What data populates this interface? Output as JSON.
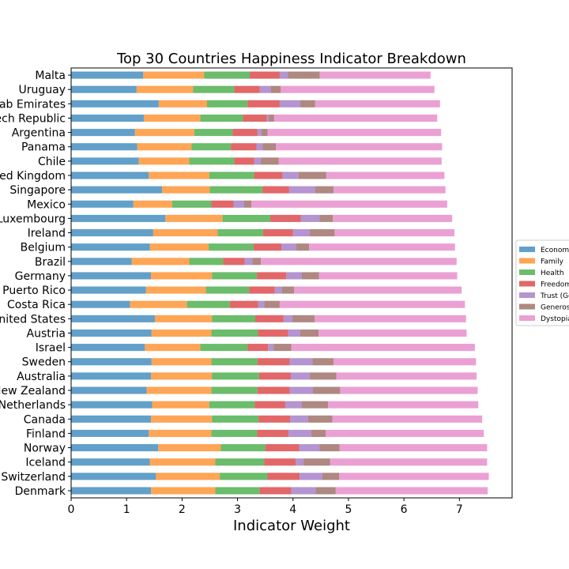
{
  "chart_data": {
    "type": "bar",
    "orientation": "horizontal",
    "stacked": true,
    "title": "Top 30 Countries Happiness Indicator Breakdown",
    "xlabel": "Indicator Weight",
    "ylabel": "",
    "xlim": [
      0,
      7.95
    ],
    "xticks": [
      "0",
      "1",
      "2",
      "3",
      "4",
      "5",
      "6",
      "7"
    ],
    "grid": false,
    "legend_position": "right",
    "categories": [
      "Denmark",
      "Switzerland",
      "Iceland",
      "Norway",
      "Finland",
      "Canada",
      "Netherlands",
      "New Zealand",
      "Australia",
      "Sweden",
      "Israel",
      "Austria",
      "United States",
      "Costa Rica",
      "Puerto Rico",
      "Germany",
      "Brazil",
      "Belgium",
      "Ireland",
      "Luxembourg",
      "Mexico",
      "Singapore",
      "United Kingdom",
      "Chile",
      "Panama",
      "Argentina",
      "Czech Republic",
      "United Arab Emirates",
      "Uruguay",
      "Malta"
    ],
    "series": [
      {
        "name": "Economy",
        "color": "#1f77b4",
        "values": [
          1.44,
          1.53,
          1.42,
          1.57,
          1.4,
          1.44,
          1.46,
          1.36,
          1.44,
          1.45,
          1.33,
          1.45,
          1.51,
          1.06,
          1.35,
          1.44,
          1.09,
          1.42,
          1.48,
          1.7,
          1.12,
          1.64,
          1.4,
          1.22,
          1.19,
          1.15,
          1.31,
          1.58,
          1.18,
          1.3
        ]
      },
      {
        "name": "Family",
        "color": "#ff7f0e",
        "values": [
          1.16,
          1.15,
          1.18,
          1.13,
          1.13,
          1.1,
          1.03,
          1.17,
          1.1,
          1.08,
          1.0,
          1.08,
          1.03,
          1.03,
          1.08,
          1.1,
          1.04,
          1.06,
          1.16,
          1.03,
          0.7,
          0.86,
          1.09,
          0.91,
          0.98,
          1.07,
          1.02,
          0.87,
          1.02,
          1.1
        ]
      },
      {
        "name": "Health",
        "color": "#2ca02c",
        "values": [
          0.8,
          0.86,
          0.88,
          0.8,
          0.82,
          0.84,
          0.82,
          0.83,
          0.85,
          0.83,
          0.85,
          0.84,
          0.78,
          0.77,
          0.78,
          0.81,
          0.61,
          0.81,
          0.82,
          0.86,
          0.71,
          0.95,
          0.81,
          0.81,
          0.71,
          0.69,
          0.77,
          0.73,
          0.74,
          0.82
        ]
      },
      {
        "name": "Freedom",
        "color": "#d62728",
        "values": [
          0.57,
          0.58,
          0.57,
          0.61,
          0.57,
          0.57,
          0.55,
          0.58,
          0.57,
          0.58,
          0.37,
          0.54,
          0.51,
          0.51,
          0.46,
          0.53,
          0.39,
          0.5,
          0.54,
          0.55,
          0.4,
          0.48,
          0.51,
          0.36,
          0.46,
          0.45,
          0.43,
          0.58,
          0.46,
          0.54
        ]
      },
      {
        "name": "Trust (Government Corruption)",
        "color": "#9467bd",
        "values": [
          0.44,
          0.41,
          0.14,
          0.37,
          0.41,
          0.32,
          0.3,
          0.42,
          0.34,
          0.41,
          0.1,
          0.22,
          0.16,
          0.11,
          0.13,
          0.28,
          0.14,
          0.27,
          0.3,
          0.34,
          0.19,
          0.47,
          0.29,
          0.12,
          0.11,
          0.07,
          0.03,
          0.37,
          0.2,
          0.15
        ]
      },
      {
        "name": "Generosity",
        "color": "#8c564b",
        "values": [
          0.36,
          0.3,
          0.48,
          0.36,
          0.26,
          0.44,
          0.47,
          0.49,
          0.48,
          0.38,
          0.32,
          0.33,
          0.4,
          0.28,
          0.22,
          0.31,
          0.15,
          0.23,
          0.45,
          0.24,
          0.13,
          0.33,
          0.5,
          0.32,
          0.24,
          0.11,
          0.1,
          0.27,
          0.18,
          0.57
        ]
      },
      {
        "name": "Dystopia Residual",
        "color": "#e377c2",
        "values": [
          2.74,
          2.7,
          2.83,
          2.66,
          2.85,
          2.7,
          2.71,
          2.48,
          2.53,
          2.57,
          3.31,
          2.67,
          2.73,
          3.34,
          3.02,
          2.49,
          3.53,
          2.63,
          2.16,
          2.15,
          3.53,
          2.02,
          2.13,
          2.94,
          3.0,
          3.13,
          2.94,
          2.25,
          2.77,
          2.0
        ]
      }
    ]
  }
}
